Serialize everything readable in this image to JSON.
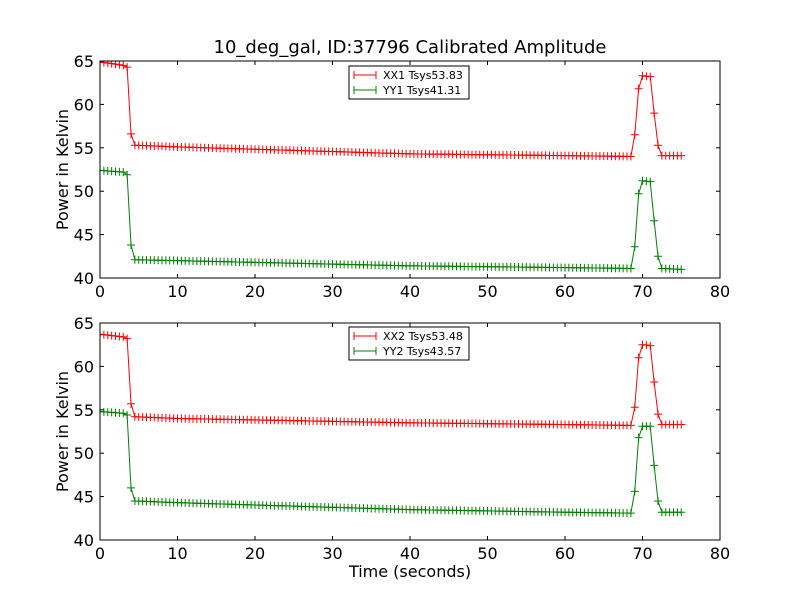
{
  "chart_data": [
    {
      "type": "line",
      "title": "10_deg_gal, ID:37796 Calibrated Amplitude",
      "xlabel": "",
      "ylabel": "Power in Kelvin",
      "xlim": [
        0,
        80
      ],
      "ylim": [
        40,
        65
      ],
      "xticks": [
        0,
        10,
        20,
        30,
        40,
        50,
        60,
        70,
        80
      ],
      "yticks": [
        40,
        45,
        50,
        55,
        60,
        65
      ],
      "grid": false,
      "legend_position": "top-center",
      "marker": "+",
      "series": [
        {
          "name": "XX1 Tsys53.83",
          "color": "#ff0000",
          "profile": {
            "x_start": 0.0,
            "x_end": 75.0,
            "x_step": 0.5,
            "knots": [
              [
                0.0,
                64.9
              ],
              [
                3.0,
                64.5
              ],
              [
                3.5,
                64.3
              ],
              [
                4.0,
                56.6
              ],
              [
                4.5,
                55.3
              ],
              [
                10.0,
                55.1
              ],
              [
                40.0,
                54.3
              ],
              [
                60.0,
                54.1
              ],
              [
                68.5,
                54.0
              ],
              [
                69.0,
                56.5
              ],
              [
                69.5,
                61.8
              ],
              [
                70.0,
                63.3
              ],
              [
                71.0,
                63.2
              ],
              [
                71.5,
                59.0
              ],
              [
                72.0,
                55.3
              ],
              [
                72.5,
                54.1
              ],
              [
                75.0,
                54.1
              ]
            ]
          }
        },
        {
          "name": "YY1 Tsys41.31",
          "color": "#008000",
          "profile": {
            "x_start": 0.0,
            "x_end": 75.0,
            "x_step": 0.5,
            "knots": [
              [
                0.0,
                52.4
              ],
              [
                3.0,
                52.2
              ],
              [
                3.5,
                51.9
              ],
              [
                4.0,
                43.8
              ],
              [
                4.5,
                42.1
              ],
              [
                10.0,
                42.0
              ],
              [
                40.0,
                41.4
              ],
              [
                60.0,
                41.2
              ],
              [
                68.5,
                41.1
              ],
              [
                69.0,
                43.6
              ],
              [
                69.5,
                49.7
              ],
              [
                70.0,
                51.2
              ],
              [
                71.0,
                51.1
              ],
              [
                71.5,
                46.6
              ],
              [
                72.0,
                42.5
              ],
              [
                72.5,
                41.1
              ],
              [
                75.0,
                41.0
              ]
            ]
          }
        }
      ]
    },
    {
      "type": "line",
      "title": "",
      "xlabel": "Time (seconds)",
      "ylabel": "Power in Kelvin",
      "xlim": [
        0,
        80
      ],
      "ylim": [
        40,
        65
      ],
      "xticks": [
        0,
        10,
        20,
        30,
        40,
        50,
        60,
        70,
        80
      ],
      "yticks": [
        40,
        45,
        50,
        55,
        60,
        65
      ],
      "grid": false,
      "legend_position": "top-center",
      "marker": "+",
      "series": [
        {
          "name": "XX2 Tsys53.48",
          "color": "#ff0000",
          "profile": {
            "x_start": 0.0,
            "x_end": 75.0,
            "x_step": 0.5,
            "knots": [
              [
                0.0,
                63.7
              ],
              [
                3.0,
                63.4
              ],
              [
                3.5,
                63.2
              ],
              [
                4.0,
                55.7
              ],
              [
                4.5,
                54.2
              ],
              [
                10.0,
                54.0
              ],
              [
                40.0,
                53.5
              ],
              [
                60.0,
                53.3
              ],
              [
                68.5,
                53.2
              ],
              [
                69.0,
                55.3
              ],
              [
                69.5,
                61.0
              ],
              [
                70.0,
                62.5
              ],
              [
                71.0,
                62.4
              ],
              [
                71.5,
                58.2
              ],
              [
                72.0,
                54.5
              ],
              [
                72.5,
                53.3
              ],
              [
                75.0,
                53.3
              ]
            ]
          }
        },
        {
          "name": "YY2 Tsys43.57",
          "color": "#008000",
          "profile": {
            "x_start": 0.0,
            "x_end": 75.0,
            "x_step": 0.5,
            "knots": [
              [
                0.0,
                54.8
              ],
              [
                3.0,
                54.6
              ],
              [
                3.5,
                54.4
              ],
              [
                4.0,
                46.0
              ],
              [
                4.5,
                44.5
              ],
              [
                10.0,
                44.3
              ],
              [
                40.0,
                43.5
              ],
              [
                60.0,
                43.2
              ],
              [
                68.5,
                43.1
              ],
              [
                69.0,
                45.6
              ],
              [
                69.5,
                51.8
              ],
              [
                70.0,
                53.1
              ],
              [
                71.0,
                53.1
              ],
              [
                71.5,
                48.6
              ],
              [
                72.0,
                44.5
              ],
              [
                72.5,
                43.2
              ],
              [
                75.0,
                43.2
              ]
            ]
          }
        }
      ]
    }
  ]
}
